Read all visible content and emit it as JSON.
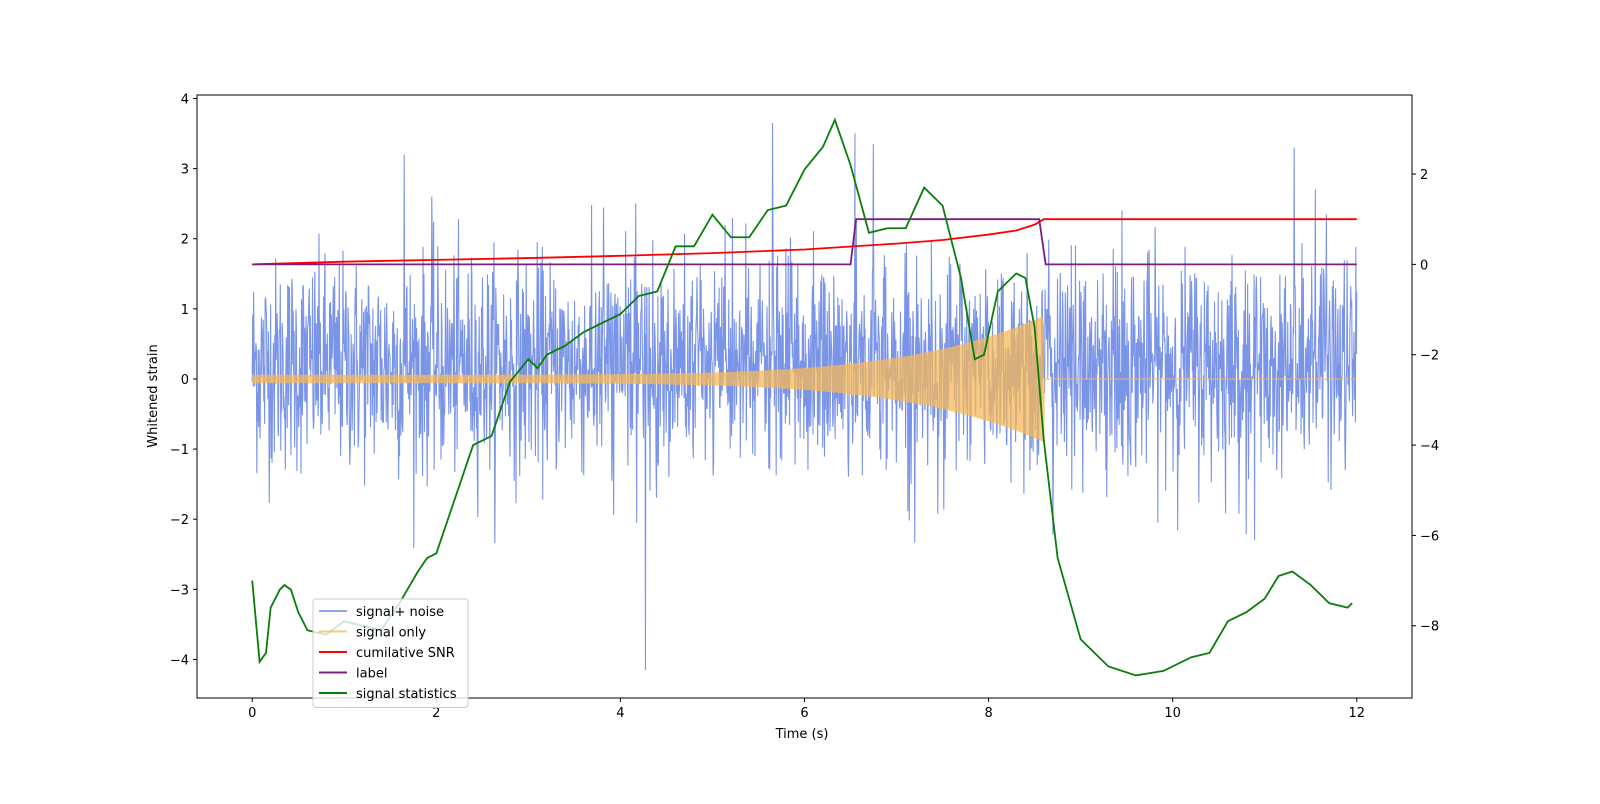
{
  "chart_data": {
    "type": "line",
    "title": "",
    "xlabel": "Time (s)",
    "ylabel": "Whitened strain",
    "y2label": "",
    "xlim": [
      -0.6,
      12.6
    ],
    "ylim": [
      -4.55,
      4.05
    ],
    "y2lim": [
      -9.6,
      3.75
    ],
    "x_ticks": [
      0,
      2,
      4,
      6,
      8,
      10,
      12
    ],
    "y_ticks": [
      4,
      3,
      2,
      1,
      0,
      -1,
      -2,
      -3,
      -4
    ],
    "y2_ticks": [
      2,
      0,
      -2,
      -4,
      -6,
      -8
    ],
    "grid": false,
    "legend_position": "lower-left",
    "series": [
      {
        "name": "signal+ noise",
        "color": "#6b88e6",
        "axis": "left",
        "description": "noisy whitened strain, roughly uniform amplitude ~±1.5 with spikes up to about 3.65 and down to about -4.15",
        "t_start": 0,
        "t_end": 12,
        "envelope_upper": 1.55,
        "envelope_lower": -1.3,
        "notable_points": [
          {
            "x": 1.65,
            "y": 3.2
          },
          {
            "x": 1.95,
            "y": 2.6
          },
          {
            "x": 4.27,
            "y": -4.15
          },
          {
            "x": 5.65,
            "y": 3.65
          },
          {
            "x": 6.55,
            "y": 3.5
          },
          {
            "x": 6.75,
            "y": 3.35
          },
          {
            "x": 11.32,
            "y": 3.3
          },
          {
            "x": 11.55,
            "y": 2.7
          }
        ]
      },
      {
        "name": "signal only",
        "color": "#f5b85a",
        "axis": "left",
        "description": "chirp amplitude envelope growing from ~0.06 at t=0 to ~0.9 near t=8.6, then zero",
        "t_start": 0,
        "t_merge": 8.6,
        "t_end": 12,
        "amp_start": 0.06,
        "amp_peak": 0.9
      },
      {
        "name": "cumilative SNR",
        "color": "#ff0000",
        "axis": "right",
        "x": [
          0,
          1,
          2,
          3,
          4,
          5,
          6,
          7,
          7.5,
          8,
          8.3,
          8.5,
          8.6,
          9,
          10,
          11,
          12
        ],
        "y": [
          0,
          0.06,
          0.1,
          0.14,
          0.19,
          0.25,
          0.33,
          0.46,
          0.54,
          0.66,
          0.75,
          0.88,
          1.0,
          1.0,
          1.0,
          1.0,
          1.0
        ]
      },
      {
        "name": "label",
        "color": "#7b1f7b",
        "axis": "right",
        "x": [
          0,
          6.5,
          6.56,
          8.55,
          8.62,
          12
        ],
        "y": [
          0,
          0,
          1,
          1,
          0,
          0
        ]
      },
      {
        "name": "signal statistics",
        "color": "#0a7d0a",
        "axis": "right",
        "x": [
          0,
          0.08,
          0.15,
          0.2,
          0.3,
          0.35,
          0.42,
          0.5,
          0.6,
          0.8,
          1.0,
          1.2,
          1.4,
          1.6,
          1.8,
          1.9,
          2.0,
          2.2,
          2.4,
          2.6,
          2.8,
          3.0,
          3.1,
          3.2,
          3.4,
          3.6,
          3.8,
          4.0,
          4.2,
          4.4,
          4.6,
          4.8,
          5.0,
          5.2,
          5.4,
          5.6,
          5.8,
          6.0,
          6.2,
          6.33,
          6.5,
          6.7,
          6.9,
          7.1,
          7.3,
          7.5,
          7.7,
          7.85,
          7.95,
          8.1,
          8.3,
          8.4,
          8.5,
          8.6,
          8.75,
          9.0,
          9.3,
          9.6,
          9.9,
          10.2,
          10.4,
          10.6,
          10.8,
          11.0,
          11.15,
          11.3,
          11.5,
          11.7,
          11.9,
          11.95
        ],
        "y": [
          -7.0,
          -8.8,
          -8.6,
          -7.6,
          -7.2,
          -7.1,
          -7.2,
          -7.7,
          -8.1,
          -8.2,
          -7.9,
          -8.0,
          -8.1,
          -7.5,
          -6.8,
          -6.5,
          -6.4,
          -5.2,
          -4.0,
          -3.8,
          -2.6,
          -2.1,
          -2.3,
          -2.0,
          -1.8,
          -1.5,
          -1.3,
          -1.1,
          -0.7,
          -0.6,
          0.4,
          0.4,
          1.1,
          0.6,
          0.6,
          1.2,
          1.3,
          2.1,
          2.6,
          3.2,
          2.2,
          0.7,
          0.8,
          0.8,
          1.7,
          1.3,
          -0.3,
          -2.1,
          -2.0,
          -0.6,
          -0.2,
          -0.3,
          -1.4,
          -3.9,
          -6.5,
          -8.3,
          -8.9,
          -9.1,
          -9.0,
          -8.7,
          -8.6,
          -7.9,
          -7.7,
          -7.4,
          -6.9,
          -6.8,
          -7.1,
          -7.5,
          -7.6,
          -7.5
        ]
      }
    ]
  }
}
